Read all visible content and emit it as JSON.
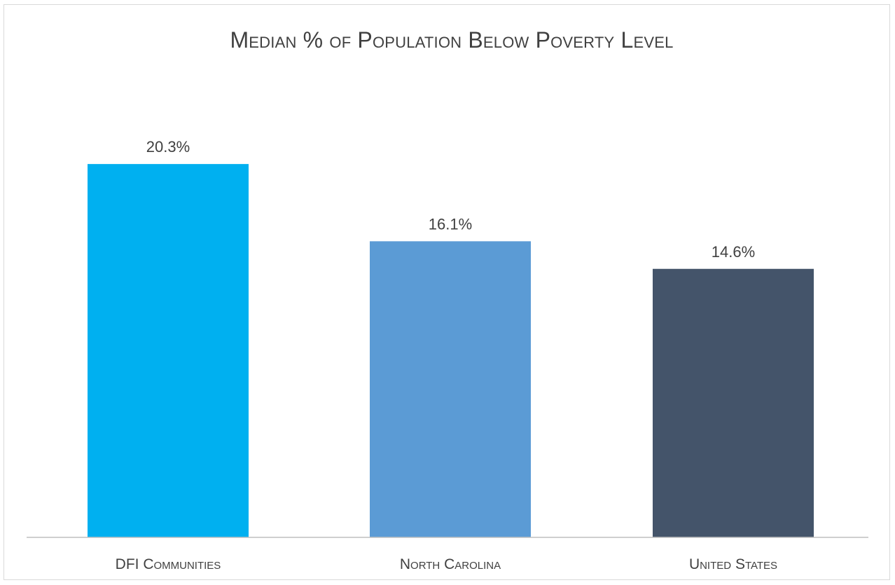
{
  "chart_data": {
    "type": "bar",
    "title": "Median % of Population Below Poverty Level",
    "categories": [
      "DFI Communities",
      "North Carolina",
      "United States"
    ],
    "values": [
      20.3,
      16.1,
      14.6
    ],
    "data_labels": [
      "20.3%",
      "16.1%",
      "14.6%"
    ],
    "colors": [
      "#00b0f0",
      "#5b9bd5",
      "#44546a"
    ],
    "xlabel": "",
    "ylabel": "",
    "ylim": [
      0,
      24
    ],
    "grid": false,
    "legend": "none"
  }
}
